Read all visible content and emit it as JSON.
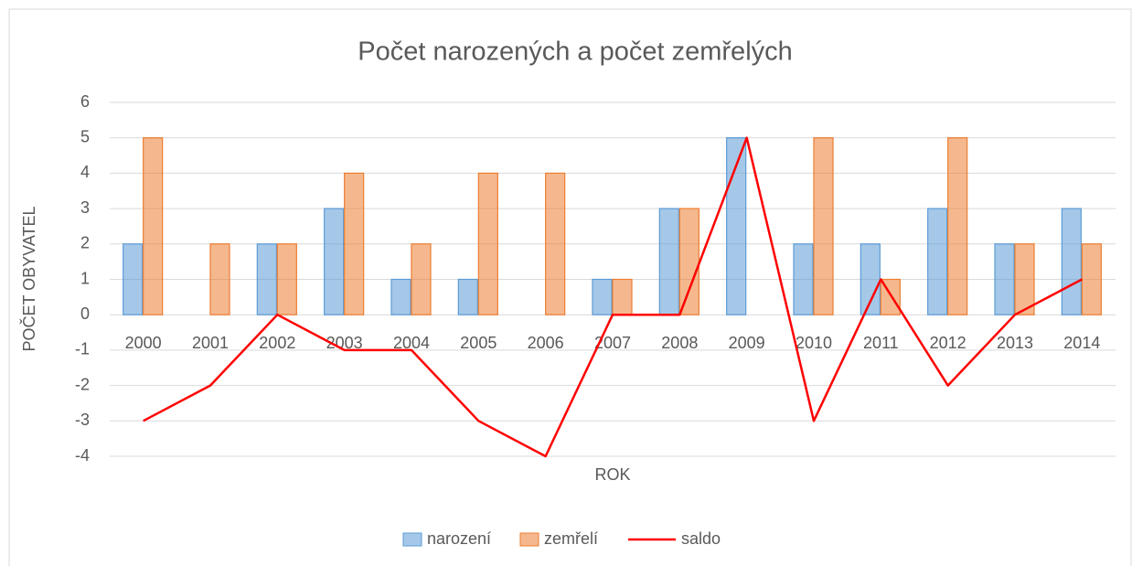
{
  "chart_data": {
    "type": "bar",
    "title": "Počet narozených a počet zemřelých",
    "x_label": "ROK",
    "y_label": "POČET OBYVATEL",
    "categories": [
      "2000",
      "2001",
      "2002",
      "2003",
      "2004",
      "2005",
      "2006",
      "2007",
      "2008",
      "2009",
      "2010",
      "2011",
      "2012",
      "2013",
      "2014"
    ],
    "series": [
      {
        "name": "narození",
        "color": "#5b9bd5",
        "type": "bar",
        "values": [
          2,
          0,
          2,
          3,
          1,
          1,
          0,
          1,
          3,
          5,
          2,
          2,
          3,
          2,
          3
        ]
      },
      {
        "name": "zemřelí",
        "color": "#ed7d31",
        "type": "bar",
        "values": [
          5,
          2,
          2,
          4,
          2,
          4,
          4,
          1,
          3,
          0,
          5,
          1,
          5,
          2,
          2
        ]
      },
      {
        "name": "saldo",
        "color": "#ff0000",
        "type": "line",
        "values": [
          -3,
          -2,
          0,
          -1,
          -1,
          -3,
          -4,
          0,
          0,
          5,
          -3,
          1,
          -2,
          0,
          1
        ]
      }
    ],
    "ylim": [
      -4,
      6
    ],
    "yticks": [
      -4,
      -3,
      -2,
      -1,
      0,
      1,
      2,
      3,
      4,
      5,
      6
    ],
    "grid": true,
    "legend": "bottom"
  }
}
